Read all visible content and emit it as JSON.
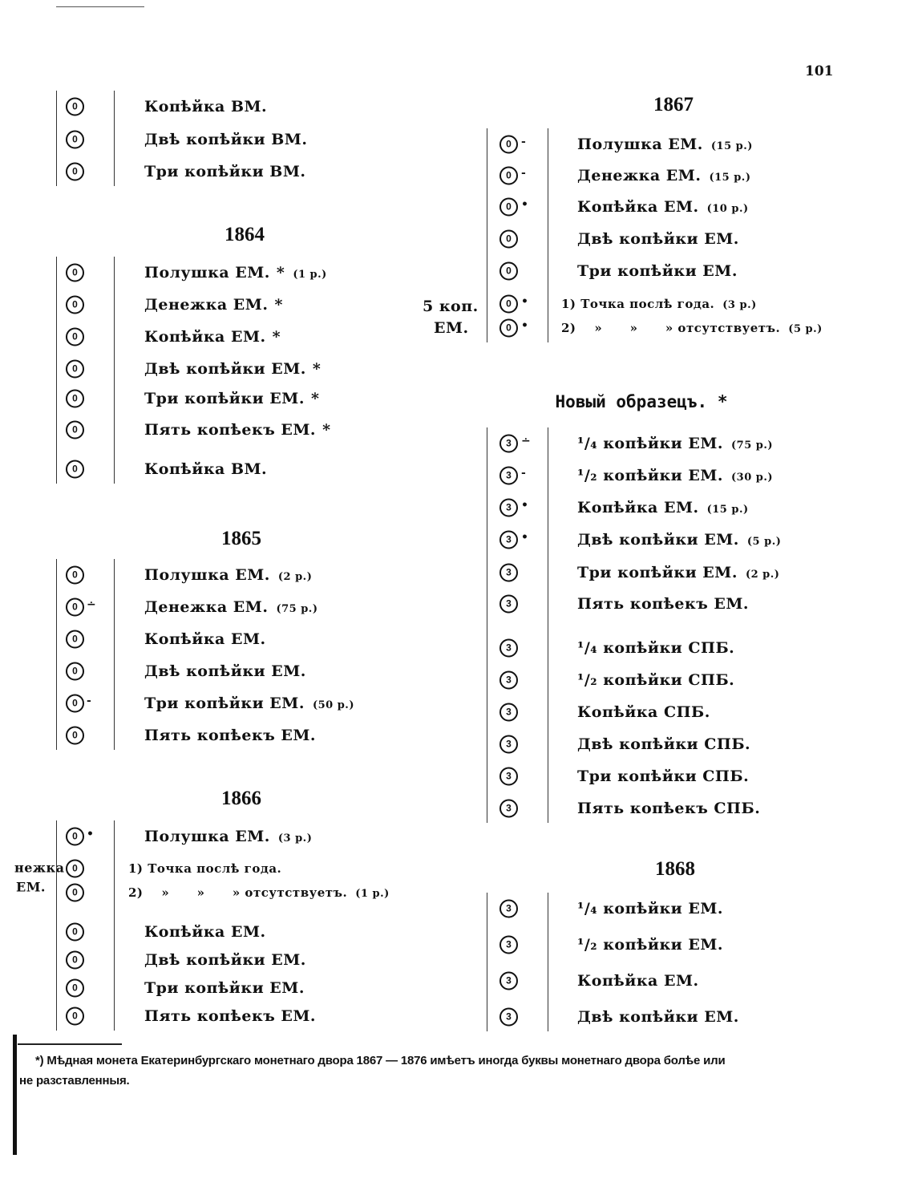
{
  "page_number": "101",
  "left_margin_fragment": [
    "нежка",
    "ЕМ."
  ],
  "left": {
    "top": [
      {
        "d": "0",
        "m": "",
        "t": "Копѣйка ВМ.",
        "s": "",
        "n": ""
      },
      {
        "d": "0",
        "m": "",
        "t": "Двѣ копѣйки ВМ.",
        "s": "",
        "n": ""
      },
      {
        "d": "0",
        "m": "",
        "t": "Три копѣйки ВМ.",
        "s": "",
        "n": ""
      }
    ],
    "y1864": {
      "title": "1864",
      "items": [
        {
          "d": "0",
          "m": "",
          "t": "Полушка ЕМ.",
          "s": "*",
          "n": "(1 р.)"
        },
        {
          "d": "0",
          "m": "",
          "t": "Денежка ЕМ.",
          "s": "*",
          "n": ""
        },
        {
          "d": "0",
          "m": "",
          "t": "Копѣйка ЕМ.",
          "s": "*",
          "n": ""
        },
        {
          "d": "0",
          "m": "",
          "t": "Двѣ копѣйки ЕМ.",
          "s": "*",
          "n": ""
        },
        {
          "d": "0",
          "m": "",
          "t": "Три копѣйки ЕМ.",
          "s": "*",
          "n": ""
        },
        {
          "d": "0",
          "m": "",
          "t": "Пять копѣекъ ЕМ.",
          "s": "*",
          "n": ""
        },
        {
          "d": "0",
          "m": "",
          "t": "Копѣйка ВМ.",
          "s": "",
          "n": ""
        }
      ]
    },
    "y1865": {
      "title": "1865",
      "items": [
        {
          "d": "0",
          "m": "",
          "t": "Полушка ЕМ.",
          "s": "",
          "n": "(2 р.)"
        },
        {
          "d": "0",
          "m": "∸",
          "t": "Денежка ЕМ.",
          "s": "",
          "n": "(75 р.)"
        },
        {
          "d": "0",
          "m": "",
          "t": "Копѣйка ЕМ.",
          "s": "",
          "n": ""
        },
        {
          "d": "0",
          "m": "",
          "t": "Двѣ копѣйки ЕМ.",
          "s": "",
          "n": ""
        },
        {
          "d": "0",
          "m": "-",
          "t": "Три копѣйки ЕМ.",
          "s": "",
          "n": "(50 р.)"
        },
        {
          "d": "0",
          "m": "",
          "t": "Пять копѣекъ ЕМ.",
          "s": "",
          "n": ""
        }
      ]
    },
    "y1866": {
      "title": "1866",
      "items": [
        {
          "d": "0",
          "m": "•",
          "t": "Полушка ЕМ.",
          "s": "",
          "n": "(3 р.)"
        },
        {
          "d": "0",
          "m": "",
          "t": "1) Точка послѣ года.",
          "s": "",
          "n": ""
        },
        {
          "d": "0",
          "m": "",
          "t": "2)    »      »      » отсутствуетъ.",
          "s": "",
          "n": "(1 р.)"
        },
        {
          "d": "0",
          "m": "",
          "t": "Копѣйка ЕМ.",
          "s": "",
          "n": ""
        },
        {
          "d": "0",
          "m": "",
          "t": "Двѣ копѣйки ЕМ.",
          "s": "",
          "n": ""
        },
        {
          "d": "0",
          "m": "",
          "t": "Три копѣйки ЕМ.",
          "s": "",
          "n": ""
        },
        {
          "d": "0",
          "m": "",
          "t": "Пять копѣекъ ЕМ.",
          "s": "",
          "n": ""
        }
      ]
    }
  },
  "right": {
    "y1867": {
      "title": "1867",
      "side_label": [
        "5 коп.",
        "ЕМ."
      ],
      "items": [
        {
          "d": "0",
          "m": "-",
          "t": "Полушка ЕМ.",
          "s": "",
          "n": "(15 р.)"
        },
        {
          "d": "0",
          "m": "-",
          "t": "Денежка ЕМ.",
          "s": "",
          "n": "(15 р.)"
        },
        {
          "d": "0",
          "m": "•",
          "t": "Копѣйка ЕМ.",
          "s": "",
          "n": "(10 р.)"
        },
        {
          "d": "0",
          "m": "",
          "t": "Двѣ копѣйки ЕМ.",
          "s": "",
          "n": ""
        },
        {
          "d": "0",
          "m": "",
          "t": "Три копѣйки ЕМ.",
          "s": "",
          "n": ""
        },
        {
          "d": "0",
          "m": "•",
          "t": "1) Точка послѣ года.",
          "s": "",
          "n": "(3 р.)"
        },
        {
          "d": "0",
          "m": "•",
          "t": "2)    »      »      » отсутствуетъ.",
          "s": "",
          "n": "(5 р.)"
        }
      ]
    },
    "new_type": {
      "title": "Новый образецъ. *",
      "items": [
        {
          "d": "3",
          "m": "∸",
          "t": "¹/₄ копѣйки ЕМ.",
          "s": "",
          "n": "(75 р.)"
        },
        {
          "d": "3",
          "m": "-",
          "t": "¹/₂ копѣйки ЕМ.",
          "s": "",
          "n": "(30 р.)"
        },
        {
          "d": "3",
          "m": "•",
          "t": "Копѣйка ЕМ.",
          "s": "",
          "n": "(15 р.)"
        },
        {
          "d": "3",
          "m": "•",
          "t": "Двѣ копѣйки ЕМ.",
          "s": "",
          "n": "(5 р.)"
        },
        {
          "d": "3",
          "m": "",
          "t": "Три копѣйки ЕМ.",
          "s": "",
          "n": "(2 р.)"
        },
        {
          "d": "3",
          "m": "",
          "t": "Пять копѣекъ ЕМ.",
          "s": "",
          "n": ""
        },
        {
          "d": "3",
          "m": "",
          "t": "¹/₄ копѣйки СПБ.",
          "s": "",
          "n": ""
        },
        {
          "d": "3",
          "m": "",
          "t": "¹/₂ копѣйки СПБ.",
          "s": "",
          "n": ""
        },
        {
          "d": "3",
          "m": "",
          "t": "Копѣйка СПБ.",
          "s": "",
          "n": ""
        },
        {
          "d": "3",
          "m": "",
          "t": "Двѣ копѣйки СПБ.",
          "s": "",
          "n": ""
        },
        {
          "d": "3",
          "m": "",
          "t": "Три копѣйки СПБ.",
          "s": "",
          "n": ""
        },
        {
          "d": "3",
          "m": "",
          "t": "Пять копѣекъ СПБ.",
          "s": "",
          "n": ""
        }
      ]
    },
    "y1868": {
      "title": "1868",
      "items": [
        {
          "d": "3",
          "m": "",
          "t": "¹/₄ копѣйки ЕМ.",
          "s": "",
          "n": ""
        },
        {
          "d": "3",
          "m": "",
          "t": "¹/₂ копѣйки ЕМ.",
          "s": "",
          "n": ""
        },
        {
          "d": "3",
          "m": "",
          "t": "Копѣйка ЕМ.",
          "s": "",
          "n": ""
        },
        {
          "d": "3",
          "m": "",
          "t": "Двѣ копѣйки ЕМ.",
          "s": "",
          "n": ""
        }
      ]
    }
  },
  "footnote": [
    "*) Мѣдная монета Екатеринбургскаго монетнаго двора 1867 — 1876 имѣетъ иногда буквы монетнаго двора болѣе или",
    "не разставленныя."
  ]
}
